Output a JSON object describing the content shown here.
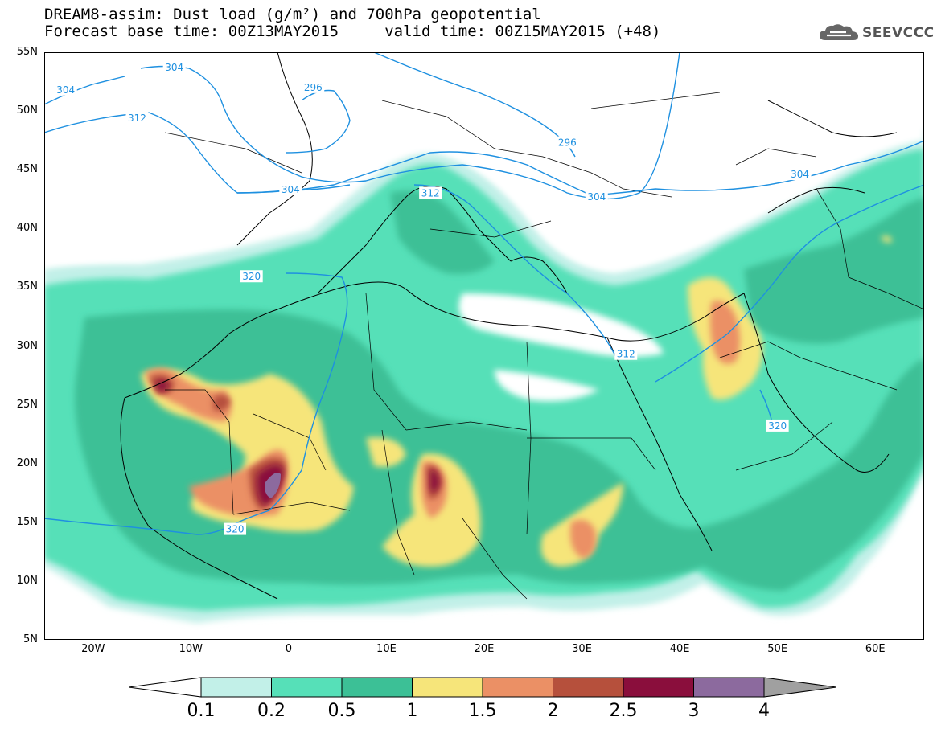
{
  "header": {
    "title_line1": "DREAM8-assim: Dust load (g/m²) and 700hPa geopotential",
    "title_line2": "Forecast base time: 00Z13MAY2015     valid time: 00Z15MAY2015 (+48)",
    "logo_text": "SEEVCCC",
    "logo_icon": "cloud-icon"
  },
  "map": {
    "projection": "cylindrical",
    "lon_range": [
      -25,
      65
    ],
    "lat_range": [
      5,
      55
    ],
    "lat_labels": [
      "55N",
      "50N",
      "45N",
      "40N",
      "35N",
      "30N",
      "25N",
      "20N",
      "15N",
      "10N",
      "5N"
    ],
    "lat_values": [
      55,
      50,
      45,
      40,
      35,
      30,
      25,
      20,
      15,
      10,
      5
    ],
    "lon_labels": [
      "20W",
      "10W",
      "0",
      "10E",
      "20E",
      "30E",
      "40E",
      "50E",
      "60E"
    ],
    "lon_values": [
      -20,
      -10,
      0,
      10,
      20,
      30,
      40,
      50,
      60
    ],
    "contour_color": "#1e90e0",
    "contour_labels": [
      {
        "text": "304",
        "lon": -22.8,
        "lat": 51.8
      },
      {
        "text": "304",
        "lon": -11.7,
        "lat": 53.7
      },
      {
        "text": "312",
        "lon": -15.5,
        "lat": 49.4
      },
      {
        "text": "296",
        "lon": 2.5,
        "lat": 52.0
      },
      {
        "text": "296",
        "lon": 28.5,
        "lat": 47.3
      },
      {
        "text": "304",
        "lon": 0.2,
        "lat": 43.3
      },
      {
        "text": "312",
        "lon": 14.5,
        "lat": 43.0
      },
      {
        "text": "304",
        "lon": 31.5,
        "lat": 42.7
      },
      {
        "text": "304",
        "lon": 52.3,
        "lat": 44.6
      },
      {
        "text": "320",
        "lon": -3.8,
        "lat": 35.9
      },
      {
        "text": "312",
        "lon": 34.5,
        "lat": 29.3
      },
      {
        "text": "320",
        "lon": 50.0,
        "lat": 23.2
      },
      {
        "text": "320",
        "lon": -5.5,
        "lat": 14.4
      }
    ]
  },
  "colorbar": {
    "labels": [
      "0.1",
      "0.2",
      "0.5",
      "1",
      "1.5",
      "2",
      "2.5",
      "3",
      "4"
    ],
    "colors": [
      "#c2f0e8",
      "#56e0b8",
      "#3cc096",
      "#f6e57a",
      "#eb9065",
      "#b6503c",
      "#8a0e3c",
      "#8c6a9e",
      "#a0a0a0"
    ],
    "under_color": "#ffffff"
  }
}
